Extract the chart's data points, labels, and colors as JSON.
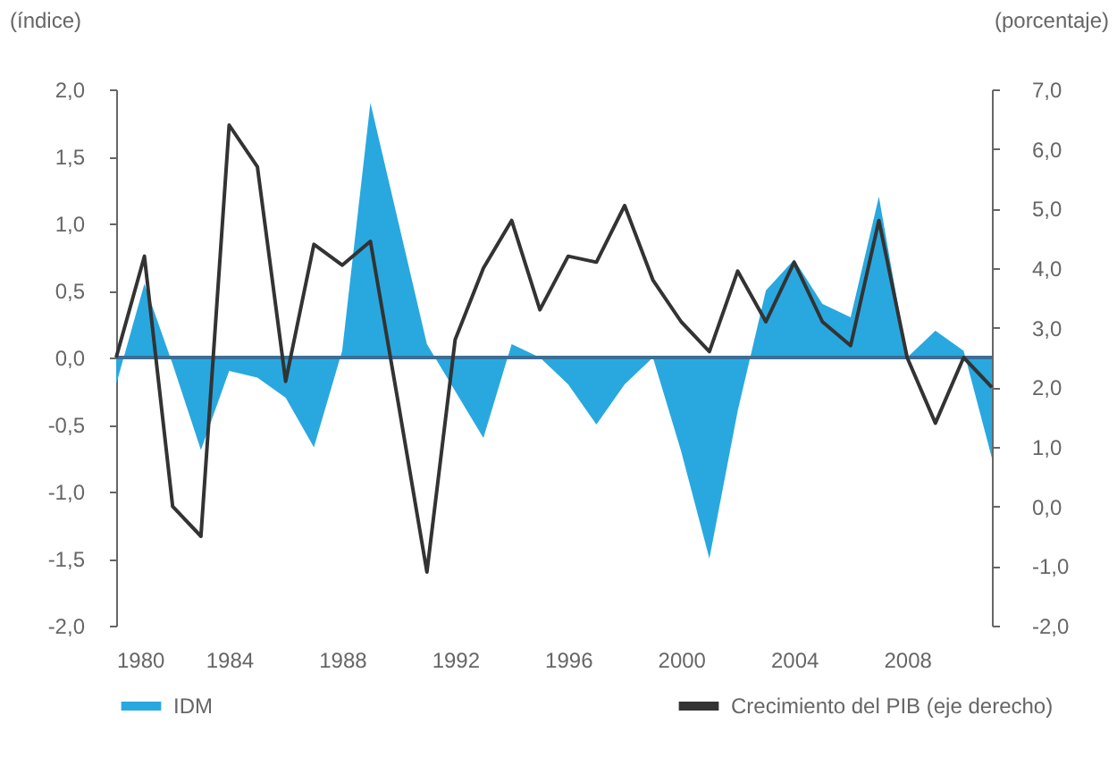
{
  "chart_data": {
    "type": "area",
    "x": [
      1980,
      1981,
      1982,
      1983,
      1984,
      1985,
      1986,
      1987,
      1988,
      1989,
      1990,
      1991,
      1992,
      1993,
      1994,
      1995,
      1996,
      1997,
      1998,
      1999,
      2000,
      2001,
      2002,
      2003,
      2004,
      2005,
      2006,
      2007,
      2008,
      2009,
      2010,
      2011
    ],
    "series": [
      {
        "name": "IDM",
        "color": "#29a8df",
        "values": [
          -0.2,
          0.55,
          -0.05,
          -0.69,
          -0.1,
          -0.15,
          -0.3,
          -0.67,
          0.05,
          1.9,
          1.0,
          0.1,
          -0.25,
          -0.6,
          0.1,
          0.0,
          -0.2,
          -0.5,
          -0.2,
          0.0,
          -0.7,
          -1.5,
          -0.4,
          0.5,
          0.73,
          0.4,
          0.3,
          1.2,
          0.0,
          0.2,
          0.05,
          -0.75
        ]
      },
      {
        "name": "Crecimiento del PIB (eje derecho)",
        "type": "line",
        "axis": "y2",
        "color": "#333333",
        "values": [
          2.5,
          4.2,
          0.0,
          -0.5,
          6.4,
          5.7,
          2.1,
          4.4,
          4.05,
          4.45,
          1.7,
          -1.1,
          2.8,
          4.0,
          4.8,
          3.3,
          4.2,
          4.1,
          5.05,
          3.8,
          3.1,
          2.6,
          3.95,
          3.1,
          4.1,
          3.1,
          2.7,
          4.8,
          2.5,
          1.4,
          2.5,
          2.0
        ]
      }
    ],
    "ylabel": "(índice)",
    "y2label": "(porcentaje)",
    "xlim": [
      1980,
      2011
    ],
    "xticks": [
      1980,
      1984,
      1988,
      1992,
      1996,
      2000,
      2004,
      2008
    ],
    "ylim": [
      -2.0,
      2.0
    ],
    "yticks": [
      {
        "value": -2.0,
        "label": "-2,0"
      },
      {
        "value": -1.5,
        "label": "-1,5"
      },
      {
        "value": -1.0,
        "label": "-1,0"
      },
      {
        "value": -0.5,
        "label": "-0,5"
      },
      {
        "value": 0.0,
        "label": "0,0"
      },
      {
        "value": 0.5,
        "label": "0,5"
      },
      {
        "value": 1.0,
        "label": "1,0"
      },
      {
        "value": 1.5,
        "label": "1,5"
      },
      {
        "value": 2.0,
        "label": "2,0"
      }
    ],
    "y2lim": [
      -2.0,
      7.0
    ],
    "y2ticks": [
      {
        "value": -2.0,
        "label": "-2,0"
      },
      {
        "value": -1.0,
        "label": "-1,0"
      },
      {
        "value": 0.0,
        "label": "0,0"
      },
      {
        "value": 1.0,
        "label": "1,0"
      },
      {
        "value": 2.0,
        "label": "2,0"
      },
      {
        "value": 3.0,
        "label": "3,0"
      },
      {
        "value": 4.0,
        "label": "4,0"
      },
      {
        "value": 5.0,
        "label": "5,0"
      },
      {
        "value": 6.0,
        "label": "6,0"
      },
      {
        "value": 7.0,
        "label": "7,0"
      }
    ],
    "ref_lines": [
      {
        "axis": "y",
        "value": 0.0,
        "color": "#3b6e96"
      }
    ],
    "legend": "bottom",
    "grid": false
  }
}
